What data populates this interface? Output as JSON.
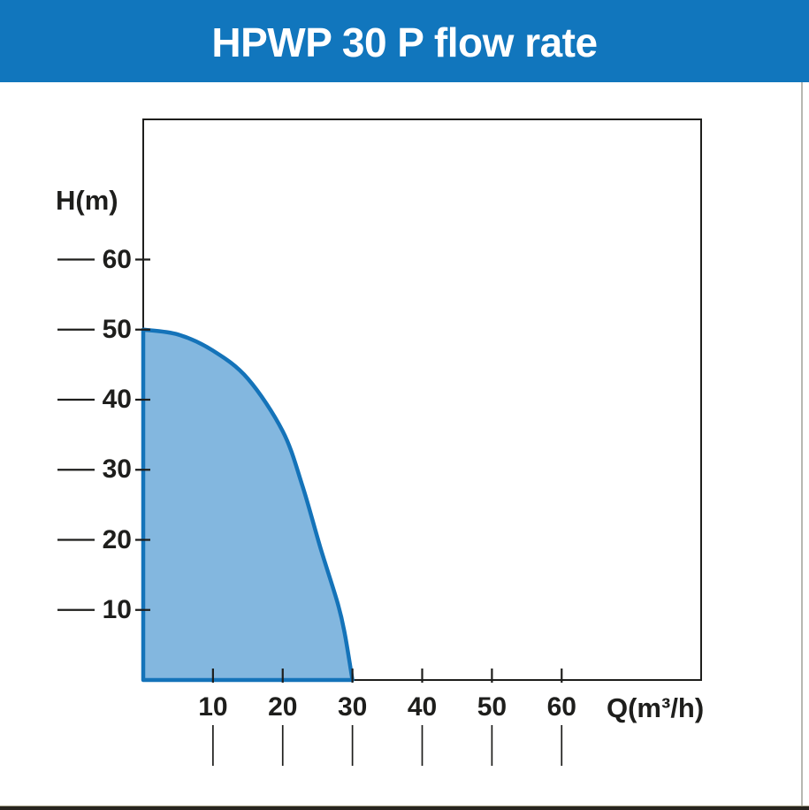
{
  "header": {
    "title": "HPWP 30 P flow rate",
    "bg_color": "#1176BD",
    "text_color": "#FFFFFF"
  },
  "chart_data": {
    "type": "area",
    "title": "HPWP 30 P flow rate",
    "xlabel": "Q(m³/h)",
    "ylabel": "H(m)",
    "xlim": [
      0,
      80
    ],
    "ylim": [
      0,
      80
    ],
    "x_ticks": [
      10,
      20,
      30,
      40,
      50,
      60
    ],
    "y_ticks": [
      10,
      20,
      30,
      40,
      50,
      60
    ],
    "curve_points": [
      [
        0,
        50
      ],
      [
        5,
        49.3
      ],
      [
        10,
        47
      ],
      [
        15,
        43
      ],
      [
        20,
        35.5
      ],
      [
        22.8,
        27.8
      ],
      [
        25.4,
        18.9
      ],
      [
        27.9,
        10.9
      ],
      [
        28.9,
        6.6
      ],
      [
        30,
        0
      ]
    ],
    "fill_color": "#83B7DF",
    "stroke_color": "#1473B9",
    "axis_color": "#1E1E1C",
    "grid": false,
    "legend": null
  },
  "footer": {
    "strip_color": "#27241E"
  }
}
